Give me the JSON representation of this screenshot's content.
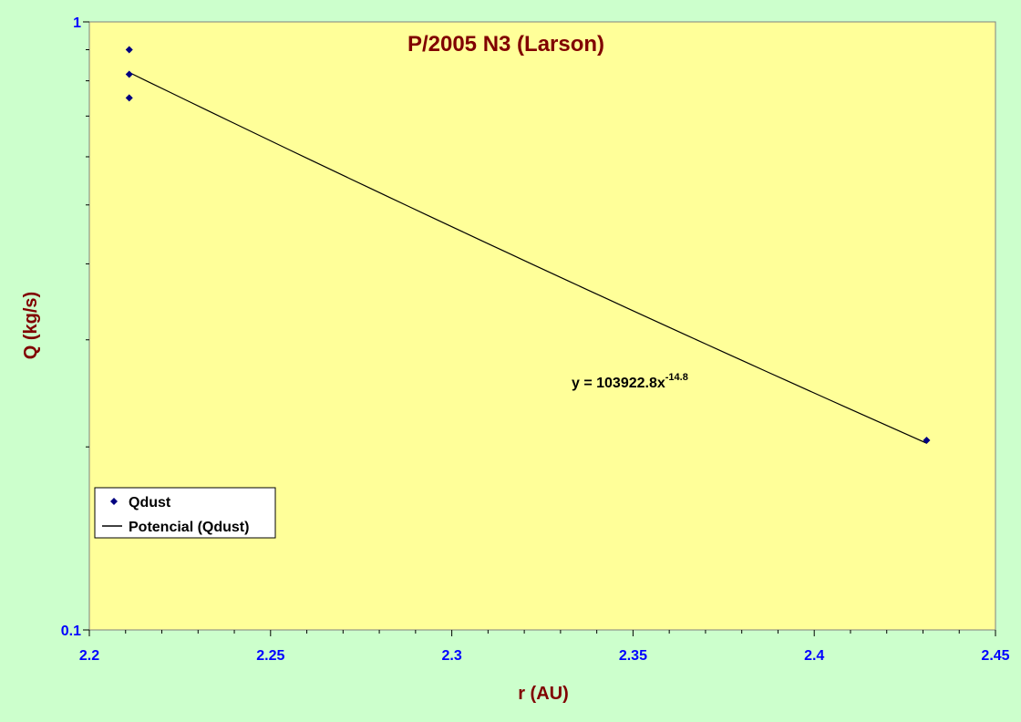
{
  "chart_data": {
    "type": "scatter",
    "title": "P/2005 N3 (Larson)",
    "xlabel": "r (AU)",
    "ylabel": "Q (kg/s)",
    "xlim": [
      2.2,
      2.45
    ],
    "ylim": [
      0.1,
      1
    ],
    "yscale": "log",
    "x_ticks": [
      "2.2",
      "2.25",
      "2.3",
      "2.35",
      "2.4",
      "2.45"
    ],
    "y_ticks": [
      "0.1",
      "1"
    ],
    "series": [
      {
        "name": "Qdust",
        "marker": "diamond",
        "color": "#000080",
        "x": [
          2.211,
          2.211,
          2.211,
          2.431
        ],
        "y": [
          0.9,
          0.82,
          0.75,
          0.205
        ]
      },
      {
        "name": "Potencial (Qdust)",
        "kind": "power-trendline",
        "color": "#000000",
        "coefficient": 103922.8,
        "exponent": -14.8
      }
    ],
    "trendline_equation": {
      "base": "y = 103922.8x",
      "exponent": "-14.8"
    },
    "legend_position": "bottom-left",
    "colors": {
      "plot_background": "#ffff99",
      "page_background": "#ccffcc",
      "title": "#800000",
      "tick_labels": "#0000ff"
    }
  }
}
